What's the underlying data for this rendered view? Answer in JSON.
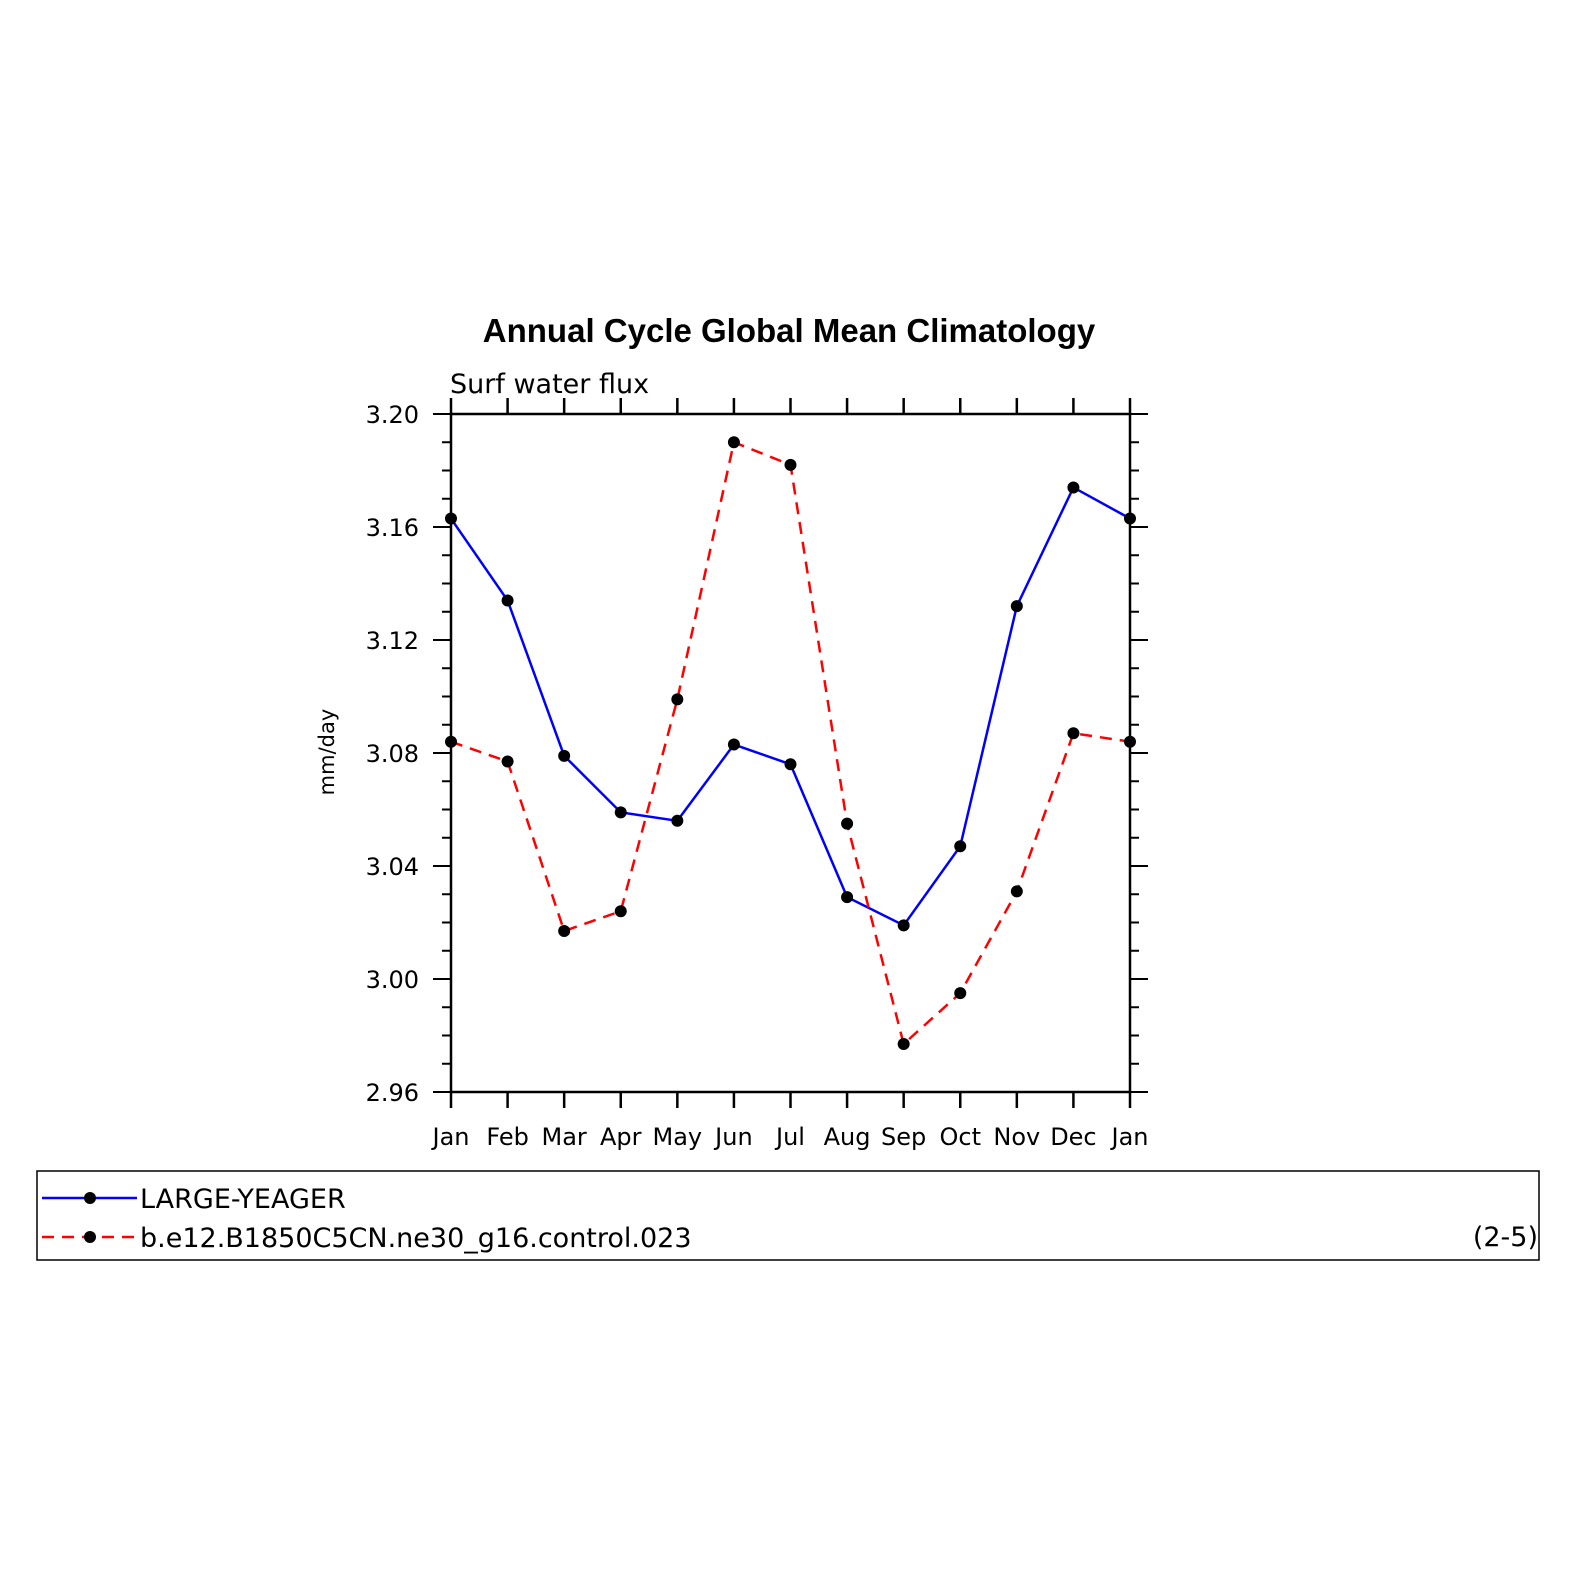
{
  "chart_data": {
    "type": "line",
    "title": "Annual Cycle Global Mean Climatology",
    "subtitle": "Surf water flux",
    "ylabel": "mm/day",
    "xlabel": "",
    "categories": [
      "Jan",
      "Feb",
      "Mar",
      "Apr",
      "May",
      "Jun",
      "Jul",
      "Aug",
      "Sep",
      "Oct",
      "Nov",
      "Dec",
      "Jan"
    ],
    "ylim": [
      2.96,
      3.2
    ],
    "yticks": [
      "2.96",
      "3.00",
      "3.04",
      "3.08",
      "3.12",
      "3.16",
      "3.20"
    ],
    "legend_position": "bottom",
    "panel_label": "(2-5)",
    "series": [
      {
        "name": "LARGE-YEAGER",
        "color": "#0000ff",
        "dash": "solid",
        "marker": "filled-circle",
        "values": [
          3.163,
          3.134,
          3.079,
          3.059,
          3.056,
          3.083,
          3.076,
          3.029,
          3.019,
          3.047,
          3.132,
          3.174,
          3.163
        ]
      },
      {
        "name": "b.e12.B1850C5CN.ne30_g16.control.023",
        "color": "#ff0000",
        "dash": "dashed",
        "marker": "filled-circle",
        "values": [
          3.084,
          3.077,
          3.017,
          3.024,
          3.099,
          3.19,
          3.182,
          3.055,
          2.977,
          2.995,
          3.031,
          3.087,
          3.084
        ]
      }
    ]
  }
}
